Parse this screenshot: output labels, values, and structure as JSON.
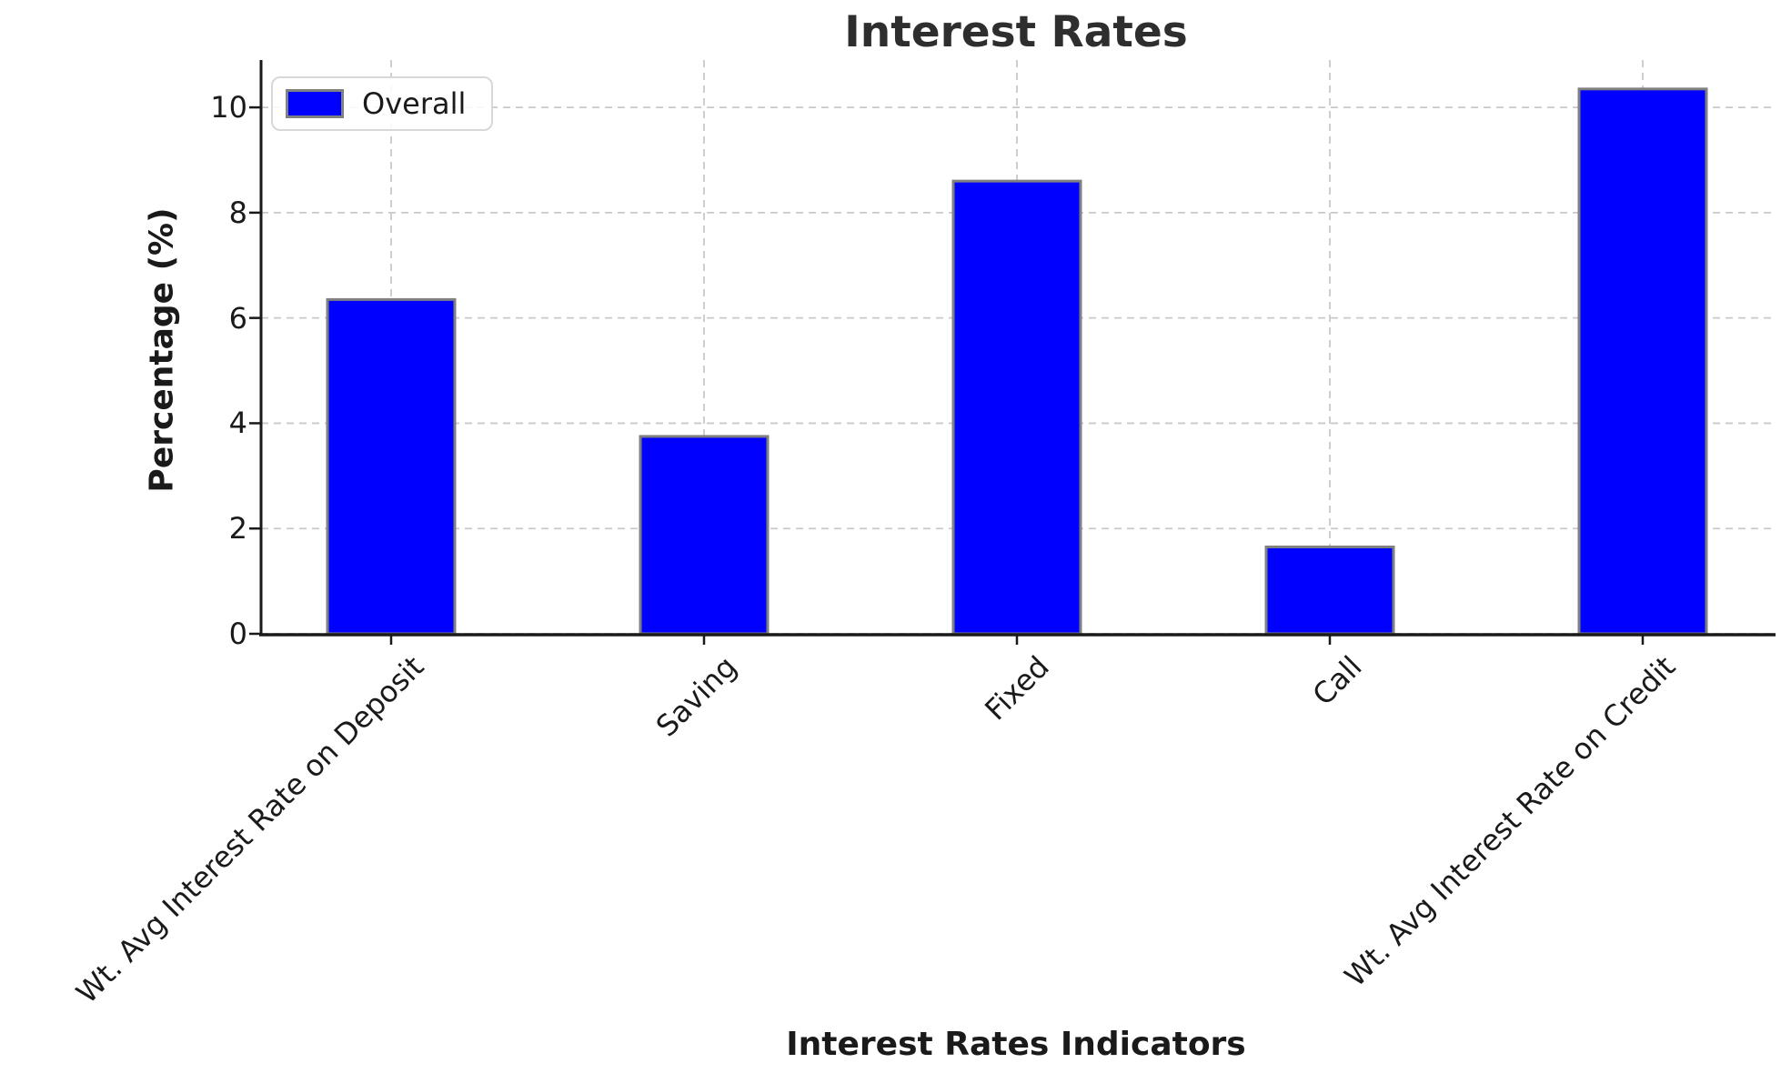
{
  "chart_data": {
    "type": "bar",
    "title": "Interest Rates",
    "xlabel": "Interest Rates Indicators",
    "ylabel": "Percentage (%)",
    "categories": [
      "Wt. Avg Interest Rate on Deposit",
      "Saving",
      "Fixed",
      "Call",
      "Wt. Avg Interest Rate on Credit"
    ],
    "series": [
      {
        "name": "Overall",
        "values": [
          6.35,
          3.75,
          8.6,
          1.65,
          10.35
        ]
      }
    ],
    "yticks": [
      0,
      2,
      4,
      6,
      8,
      10
    ],
    "ylim": [
      0,
      10.9
    ],
    "grid": true,
    "grid_style": "dashed",
    "legend_position": "upper-left",
    "x_tick_rotation": 45,
    "colors": {
      "bar": "#0000ff",
      "bar_edge": "#808080",
      "grid": "#c9c9c9",
      "axis": "#1a1a1a",
      "text": "#1a1a1a",
      "title": "#2e2e2e"
    }
  }
}
